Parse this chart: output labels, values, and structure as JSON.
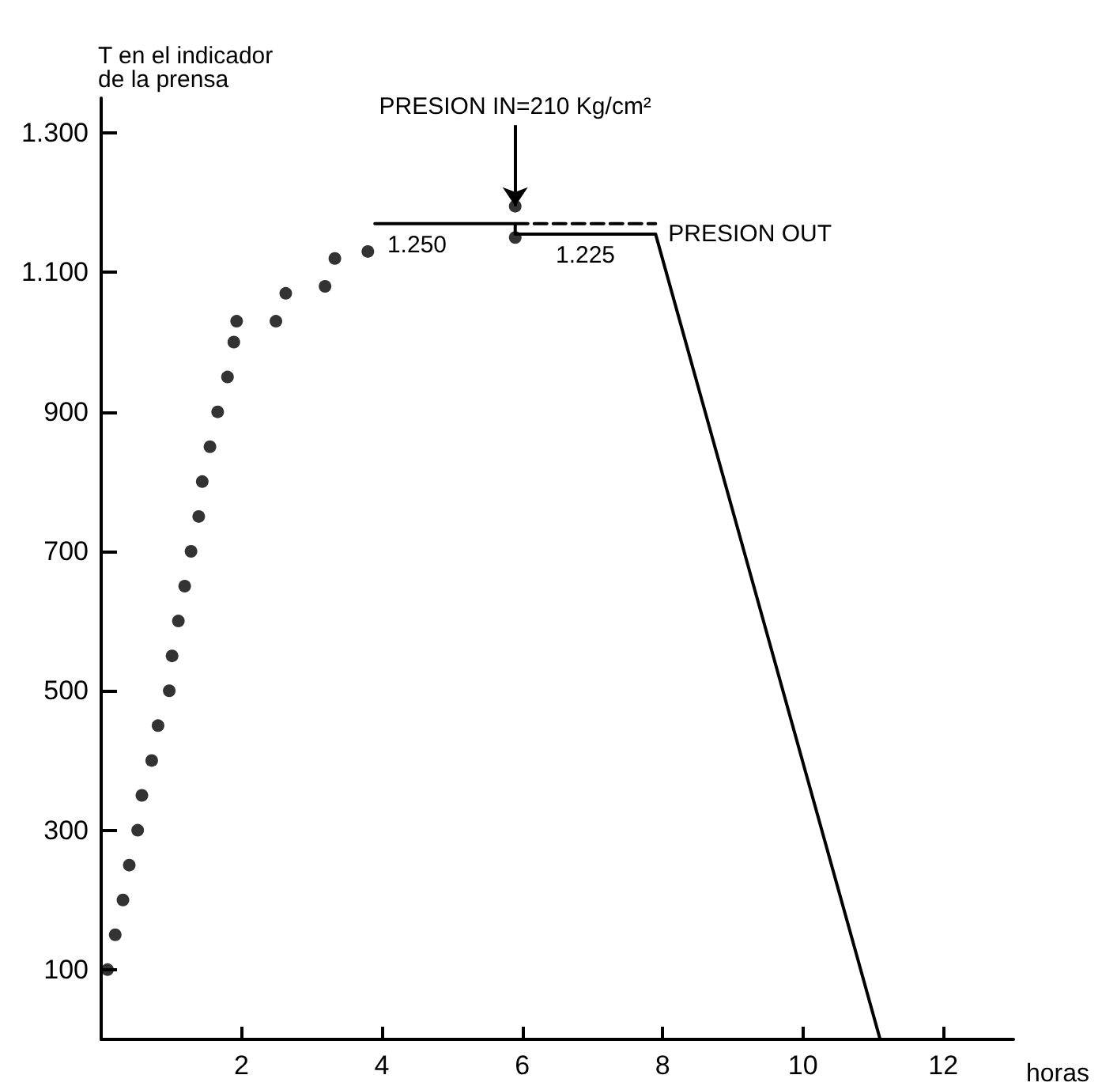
{
  "chart_data": {
    "type": "scatter",
    "ylabel": "T en el indicador\nde la prensa",
    "xlabel": "horas",
    "xlim": [
      0,
      13
    ],
    "xticks": [
      2,
      4,
      6,
      8,
      10,
      12
    ],
    "ylim": [
      0,
      1350
    ],
    "yticks": [
      100,
      300,
      500,
      700,
      900,
      {
        "value": 1100,
        "label": "1.100"
      },
      {
        "value": 1300,
        "label": "1.300"
      }
    ],
    "grid": false,
    "series": [
      {
        "color": "#000000",
        "marker": "circle",
        "x": [
          0.09,
          0.2,
          0.31,
          0.4,
          0.52,
          0.58,
          0.72,
          0.81,
          0.97,
          1.01,
          1.1,
          1.19,
          1.28,
          1.39,
          1.44,
          1.55,
          1.66,
          1.8,
          1.89,
          1.93,
          2.49,
          2.63,
          3.19,
          3.33,
          3.8,
          5.9,
          5.9
        ],
        "values": [
          100,
          150,
          200,
          250,
          300,
          350,
          400,
          450,
          500,
          550,
          600,
          650,
          700,
          750,
          800,
          850,
          900,
          950,
          1000,
          1030,
          1030,
          1070,
          1080,
          1120,
          1130,
          1195,
          1150
        ]
      },
      {
        "type": "line",
        "color": "#000000",
        "marker": "none",
        "line_style": "solid",
        "x": [
          3.9,
          5.9,
          5.9,
          7.9,
          11.1
        ],
        "values": [
          1170,
          1170,
          1155,
          1155,
          0
        ]
      },
      {
        "type": "line",
        "color": "#000000",
        "marker": "none",
        "line_style": "dashed",
        "x": [
          5.9,
          7.9
        ],
        "values": [
          1170,
          1170
        ]
      }
    ],
    "annotations": [
      {
        "text": "PRESION IN=210 Kg/cm²",
        "x": 5.9,
        "y": 1195
      },
      {
        "text": "1.250",
        "x": 4.5,
        "y": 1170
      },
      {
        "text": "1.225",
        "x": 6.9,
        "y": 1155
      },
      {
        "text": "PRESION OUT",
        "x": 7.9,
        "y": 1155
      }
    ]
  }
}
